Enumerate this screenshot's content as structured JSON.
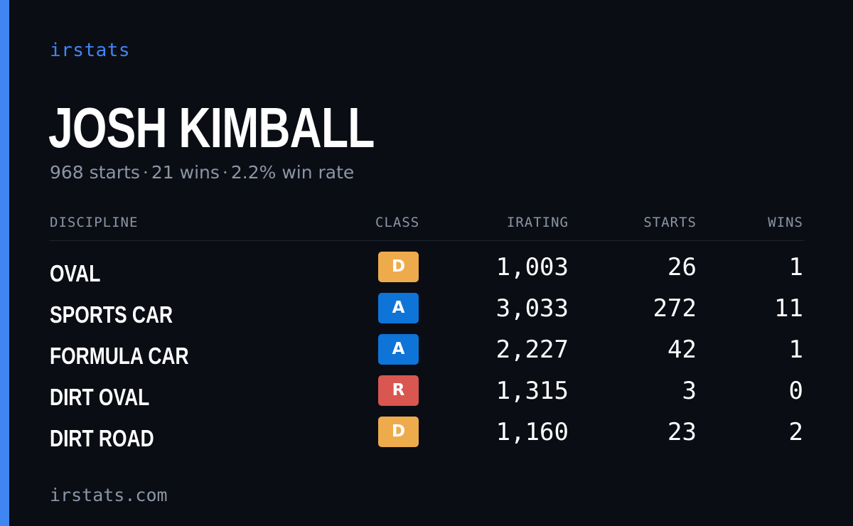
{
  "brand": "irstats",
  "driver": {
    "name": "JOSH KIMBALL",
    "starts_text": "968 starts",
    "wins_text": "21 wins",
    "win_rate_text": "2.2% win rate",
    "separator": "·"
  },
  "table": {
    "headers": {
      "discipline": "DISCIPLINE",
      "class": "CLASS",
      "irating": "IRATING",
      "starts": "STARTS",
      "wins": "WINS"
    },
    "rows": [
      {
        "discipline": "OVAL",
        "class": "D",
        "class_color": "#eeab4c",
        "irating": "1,003",
        "starts": "26",
        "wins": "1"
      },
      {
        "discipline": "SPORTS CAR",
        "class": "A",
        "class_color": "#0e74d8",
        "irating": "3,033",
        "starts": "272",
        "wins": "11"
      },
      {
        "discipline": "FORMULA CAR",
        "class": "A",
        "class_color": "#0e74d8",
        "irating": "2,227",
        "starts": "42",
        "wins": "1"
      },
      {
        "discipline": "DIRT OVAL",
        "class": "R",
        "class_color": "#d95651",
        "irating": "1,315",
        "starts": "3",
        "wins": "0"
      },
      {
        "discipline": "DIRT ROAD",
        "class": "D",
        "class_color": "#eeab4c",
        "irating": "1,160",
        "starts": "23",
        "wins": "2"
      }
    ]
  },
  "footer": "irstats.com",
  "colors": {
    "background": "#0b0d14",
    "accent": "#3f86f2",
    "muted": "#8b95a5"
  }
}
